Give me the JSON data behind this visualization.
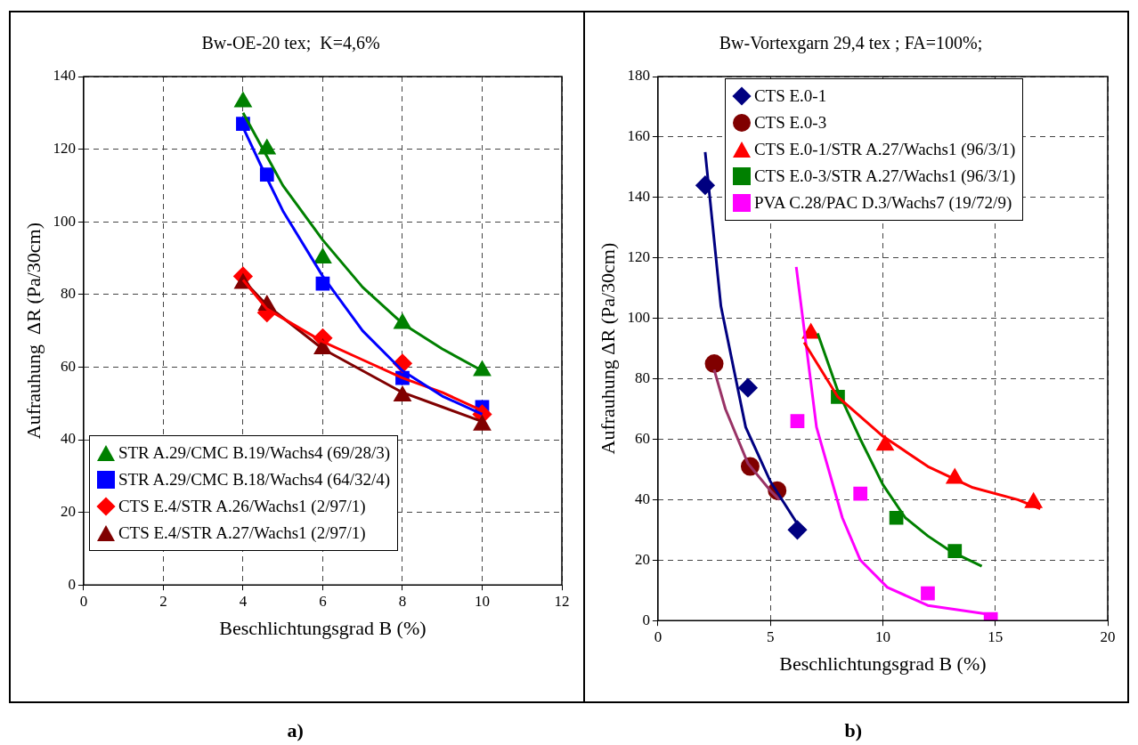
{
  "chart_data": [
    {
      "type": "scatter",
      "title": "Bw-OE-20 tex;  K=4,6%",
      "xlabel": "Beschlichtungsgrad B (%)",
      "ylabel": "Aufrauhung  ΔR (Pa/30cm)",
      "xlim": [
        0,
        12
      ],
      "xticks": [
        0,
        2,
        4,
        6,
        8,
        10,
        12
      ],
      "ylim": [
        0,
        140
      ],
      "yticks": [
        0,
        20,
        40,
        60,
        80,
        100,
        120,
        140
      ],
      "grid": true,
      "legend": "bottom left",
      "annotations": [
        "a)"
      ],
      "series": [
        {
          "name": "STR A.29/CMC B.19/Wachs4 (69/28/3)",
          "color": "#008000",
          "marker": "triangle",
          "x": [
            4,
            4.6,
            6,
            8,
            10
          ],
          "values": [
            133,
            120,
            90,
            72,
            59
          ]
        },
        {
          "name": "STR A.29/CMC B.18/Wachs4 (64/32/4)",
          "color": "#0000ff",
          "marker": "square",
          "x": [
            4,
            4.6,
            6,
            8,
            10
          ],
          "values": [
            127,
            113,
            83,
            57,
            49
          ]
        },
        {
          "name": "CTS E.4/STR A.26/Wachs1 (2/97/1)",
          "color": "#ff0000",
          "marker": "diamond",
          "x": [
            4,
            4.6,
            6,
            8,
            10
          ],
          "values": [
            85,
            75,
            68,
            61,
            47
          ]
        },
        {
          "name": "CTS E.4/STR A.27/Wachs1 (2/97/1)",
          "color": "#800000",
          "marker": "triangle",
          "x": [
            4,
            4.6,
            6,
            8,
            10
          ],
          "values": [
            83,
            77,
            65,
            52,
            44
          ]
        },
        {
          "type": "line",
          "color": "#008000",
          "marker": "none",
          "x": [
            4,
            4.6,
            5,
            6,
            7,
            8,
            9,
            10
          ],
          "values": [
            130,
            118,
            110,
            95,
            82,
            72,
            65,
            59
          ]
        },
        {
          "type": "line",
          "color": "#0000ff",
          "marker": "none",
          "x": [
            4,
            4.6,
            5,
            6,
            7,
            8,
            9,
            10
          ],
          "values": [
            126,
            112,
            103,
            85,
            70,
            59,
            52,
            47
          ]
        },
        {
          "type": "line",
          "color": "#ff0000",
          "marker": "none",
          "x": [
            4,
            4.6,
            6,
            7,
            8,
            9,
            10
          ],
          "values": [
            84,
            76,
            67,
            62,
            57,
            53,
            48
          ]
        },
        {
          "type": "line",
          "color": "#800000",
          "marker": "none",
          "x": [
            4,
            4.6,
            6,
            7,
            8,
            9,
            10
          ],
          "values": [
            84,
            77,
            65,
            59,
            53,
            49,
            45
          ]
        }
      ]
    },
    {
      "type": "scatter",
      "title": "Bw-Vortexgarn 29,4 tex ; FA=100%;",
      "xlabel": "Beschlichtungsgrad B (%)",
      "ylabel": "Aufrauhung ΔR (Pa/30cm)",
      "xlim": [
        0,
        20
      ],
      "xticks": [
        0,
        5,
        10,
        15,
        20
      ],
      "ylim": [
        0,
        180
      ],
      "yticks": [
        0,
        20,
        40,
        60,
        80,
        100,
        120,
        140,
        160,
        180
      ],
      "grid": true,
      "legend": "top left",
      "annotations": [
        "b)"
      ],
      "series": [
        {
          "name": "CTS E.0-1",
          "color": "#000080",
          "marker": "diamond",
          "x": [
            2.1,
            4,
            6.2
          ],
          "values": [
            144,
            77,
            30
          ]
        },
        {
          "name": "CTS E.0-3",
          "color": "#800000",
          "marker": "circle",
          "x": [
            2.5,
            4.1,
            5.3
          ],
          "values": [
            85,
            51,
            43
          ]
        },
        {
          "name": "CTS E.0-1/STR A.27/Wachs1 (96/3/1)",
          "color": "#ff0000",
          "marker": "triangle",
          "x": [
            6.8,
            10.1,
            13.2,
            16.7
          ],
          "values": [
            95,
            58,
            47,
            39
          ]
        },
        {
          "name": "CTS E.0-3/STR A.27/Wachs1 (96/3/1)",
          "color": "#008000",
          "marker": "square",
          "x": [
            8,
            10.6,
            13.2
          ],
          "values": [
            74,
            34,
            23
          ]
        },
        {
          "name": "PVA C.28/PAC D.3/Wachs7 (19/72/9)",
          "color": "#ff00ff",
          "marker": "square",
          "x": [
            6.2,
            9,
            12,
            14.8
          ],
          "values": [
            66,
            42,
            9,
            0.5
          ]
        },
        {
          "type": "line",
          "color": "#000080",
          "marker": "none",
          "x": [
            2.1,
            2.8,
            3.9,
            5,
            6.2
          ],
          "values": [
            155,
            104,
            64,
            46,
            32
          ]
        },
        {
          "type": "line",
          "color": "#993366",
          "marker": "none",
          "x": [
            2.5,
            3,
            4,
            5,
            5.4
          ],
          "values": [
            83,
            70,
            52,
            43,
            40
          ]
        },
        {
          "type": "line",
          "color": "#ff0000",
          "marker": "none",
          "x": [
            6.5,
            8,
            10,
            12,
            14,
            16,
            17
          ],
          "values": [
            92,
            74,
            61,
            51,
            44,
            40,
            37
          ]
        },
        {
          "type": "line",
          "color": "#008000",
          "marker": "none",
          "x": [
            7.1,
            8,
            9,
            10,
            11,
            12,
            13,
            14.4
          ],
          "values": [
            95,
            76,
            60,
            45,
            34,
            28,
            23,
            18
          ]
        },
        {
          "type": "line",
          "color": "#ff00ff",
          "marker": "none",
          "x": [
            6.15,
            7.05,
            8.2,
            9,
            10.2,
            12,
            14.8
          ],
          "values": [
            117,
            64,
            34,
            20,
            11,
            5,
            2
          ]
        }
      ]
    }
  ]
}
